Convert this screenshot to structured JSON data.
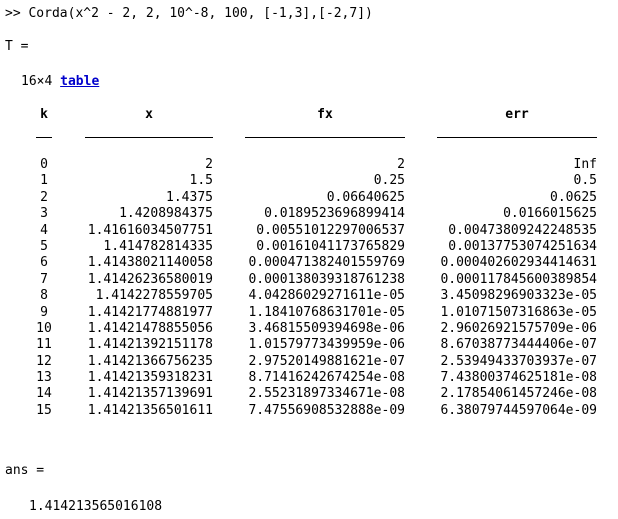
{
  "console": {
    "command": ">> Corda(x^2 - 2, 2, 10^-8, 100, [-1,3],[-2,7])",
    "assign_label": "T =",
    "table_size": "16×4",
    "table_link": "table",
    "columns": [
      "k",
      "x",
      "fx",
      "err"
    ],
    "rows": [
      {
        "k": "0",
        "x": "2",
        "fx": "2",
        "err": "Inf"
      },
      {
        "k": "1",
        "x": "1.5",
        "fx": "0.25",
        "err": "0.5"
      },
      {
        "k": "2",
        "x": "1.4375",
        "fx": "0.06640625",
        "err": "0.0625"
      },
      {
        "k": "3",
        "x": "1.4208984375",
        "fx": "0.0189523696899414",
        "err": "0.0166015625"
      },
      {
        "k": "4",
        "x": "1.41616034507751",
        "fx": "0.00551012297006537",
        "err": "0.00473809242248535"
      },
      {
        "k": "5",
        "x": "1.414782814335",
        "fx": "0.00161041173765829",
        "err": "0.00137753074251634"
      },
      {
        "k": "6",
        "x": "1.41438021140058",
        "fx": "0.000471382401559769",
        "err": "0.000402602934414631"
      },
      {
        "k": "7",
        "x": "1.41426236580019",
        "fx": "0.000138039318761238",
        "err": "0.000117845600389854"
      },
      {
        "k": "8",
        "x": "1.4142278559705",
        "fx": "4.04286029271611e-05",
        "err": "3.45098296903323e-05"
      },
      {
        "k": "9",
        "x": "1.41421774881977",
        "fx": "1.18410768631701e-05",
        "err": "1.01071507316863e-05"
      },
      {
        "k": "10",
        "x": "1.41421478855056",
        "fx": "3.46815509394698e-06",
        "err": "2.96026921575709e-06"
      },
      {
        "k": "11",
        "x": "1.41421392151178",
        "fx": "1.01579773439959e-06",
        "err": "8.67038773444406e-07"
      },
      {
        "k": "12",
        "x": "1.41421366756235",
        "fx": "2.97520149881621e-07",
        "err": "2.53949433703937e-07"
      },
      {
        "k": "13",
        "x": "1.41421359318231",
        "fx": "8.71416242674254e-08",
        "err": "7.43800374625181e-08"
      },
      {
        "k": "14",
        "x": "1.41421357139691",
        "fx": "2.55231897334671e-08",
        "err": "2.17854061457246e-08"
      },
      {
        "k": "15",
        "x": "1.41421356501611",
        "fx": "7.47556908532888e-09",
        "err": "6.38079744597064e-09"
      }
    ],
    "ans_label": "ans =",
    "ans_value": "1.414213565016108"
  }
}
